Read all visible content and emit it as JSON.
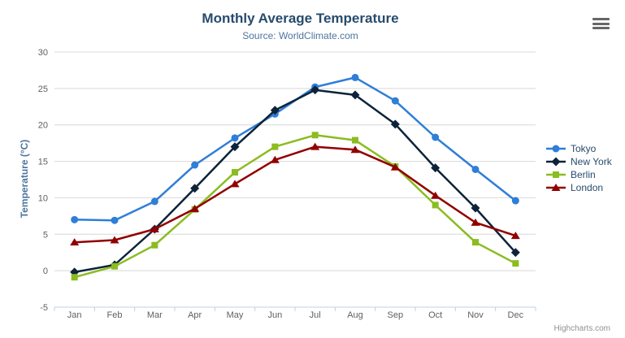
{
  "credit": "Highcharts.com",
  "chart_data": {
    "type": "line",
    "title": "Monthly Average Temperature",
    "subtitle": "Source: WorldClimate.com",
    "xlabel": "",
    "ylabel": "Temperature (°C)",
    "ylim": [
      -5,
      30
    ],
    "yticks": [
      30,
      25,
      20,
      15,
      10,
      5,
      0,
      -5
    ],
    "grid": true,
    "legend_position": "right",
    "categories": [
      "Jan",
      "Feb",
      "Mar",
      "Apr",
      "May",
      "Jun",
      "Jul",
      "Aug",
      "Sep",
      "Oct",
      "Nov",
      "Dec"
    ],
    "series": [
      {
        "name": "Tokyo",
        "color": "#2f7ed8",
        "marker": "circle",
        "values": [
          7.0,
          6.9,
          9.5,
          14.5,
          18.2,
          21.5,
          25.2,
          26.5,
          23.3,
          18.3,
          13.9,
          9.6
        ]
      },
      {
        "name": "New York",
        "color": "#0d233a",
        "marker": "diamond",
        "values": [
          -0.2,
          0.8,
          5.7,
          11.3,
          17.0,
          22.0,
          24.8,
          24.1,
          20.1,
          14.1,
          8.6,
          2.5
        ]
      },
      {
        "name": "Berlin",
        "color": "#8bbc21",
        "marker": "square",
        "values": [
          -0.9,
          0.6,
          3.5,
          8.4,
          13.5,
          17.0,
          18.6,
          17.9,
          14.3,
          9.0,
          3.9,
          1.0
        ]
      },
      {
        "name": "London",
        "color": "#910000",
        "marker": "triangle",
        "values": [
          3.9,
          4.2,
          5.7,
          8.5,
          11.9,
          15.2,
          17.0,
          16.6,
          14.2,
          10.3,
          6.6,
          4.8
        ]
      }
    ],
    "colors": {
      "grid": "#d8d8d8",
      "axis_line": "#c0d0e0",
      "tick_label": "#606060",
      "title": "#274b6d",
      "subtitle": "#4d759e",
      "axis_title": "#4d759e",
      "legend_text": "#274b6d",
      "credit": "#909090",
      "menu_icon": "#666666"
    }
  }
}
